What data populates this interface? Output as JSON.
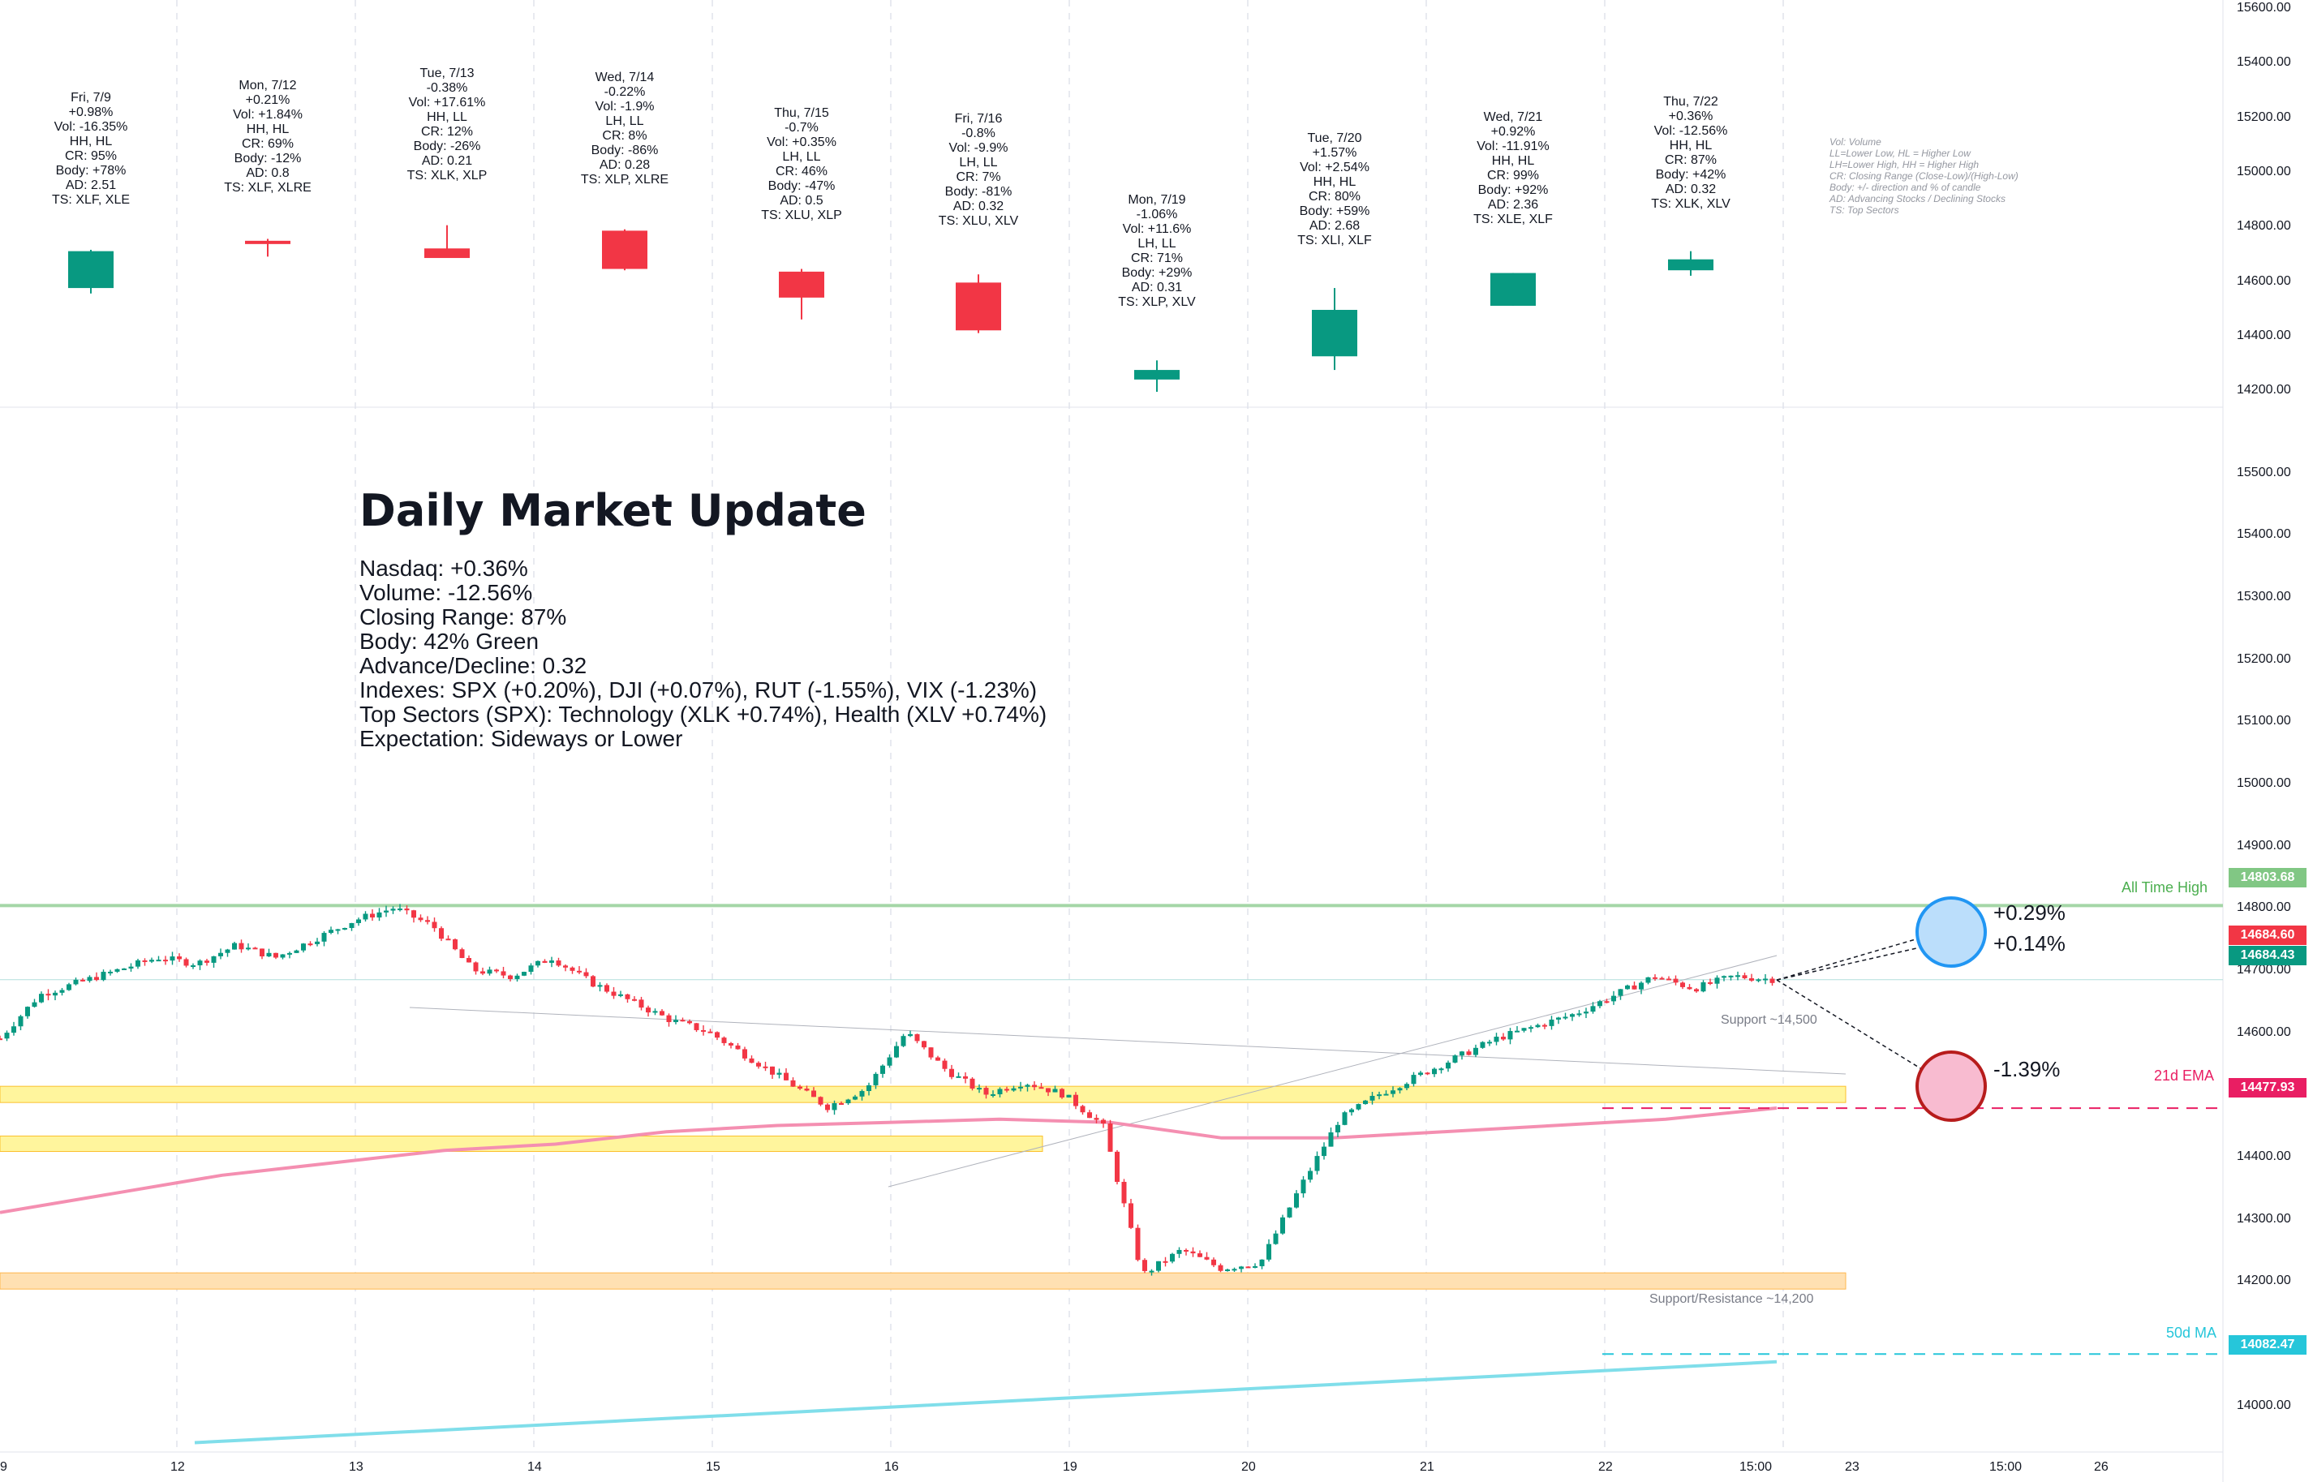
{
  "info_blocks": [
    {
      "lines": [
        "Fri, 7/9",
        "+0.98%",
        "Vol: -16.35%",
        "HH, HL",
        "CR: 95%",
        "Body: +78%",
        "AD: 2.51",
        "TS: XLF, XLE"
      ]
    },
    {
      "lines": [
        "Mon, 7/12",
        "+0.21%",
        "Vol: +1.84%",
        "HH, HL",
        "CR: 69%",
        "Body: -12%",
        "AD: 0.8",
        "TS: XLF, XLRE"
      ]
    },
    {
      "lines": [
        "Tue, 7/13",
        "-0.38%",
        "Vol: +17.61%",
        "HH, LL",
        "CR: 12%",
        "Body: -26%",
        "AD: 0.21",
        "TS: XLK, XLP"
      ]
    },
    {
      "lines": [
        "Wed, 7/14",
        "-0.22%",
        "Vol: -1.9%",
        "LH, LL",
        "CR: 8%",
        "Body: -86%",
        "AD: 0.28",
        "TS: XLP, XLRE"
      ]
    },
    {
      "lines": [
        "Thu, 7/15",
        "-0.7%",
        "Vol: +0.35%",
        "LH, LL",
        "CR: 46%",
        "Body: -47%",
        "AD: 0.5",
        "TS: XLU, XLP"
      ]
    },
    {
      "lines": [
        "Fri, 7/16",
        "-0.8%",
        "Vol: -9.9%",
        "LH, LL",
        "CR: 7%",
        "Body: -81%",
        "AD: 0.32",
        "TS: XLU, XLV"
      ]
    },
    {
      "lines": [
        "Mon, 7/19",
        "-1.06%",
        "Vol: +11.6%",
        "LH, LL",
        "CR: 71%",
        "Body: +29%",
        "AD: 0.31",
        "TS: XLP, XLV"
      ]
    },
    {
      "lines": [
        "Tue, 7/20",
        "+1.57%",
        "Vol: +2.54%",
        "HH, HL",
        "CR: 80%",
        "Body: +59%",
        "AD: 2.68",
        "TS: XLI, XLF"
      ]
    },
    {
      "lines": [
        "Wed, 7/21",
        "+0.92%",
        "Vol: -11.91%",
        "HH, HL",
        "CR: 99%",
        "Body: +92%",
        "AD: 2.36",
        "TS: XLE, XLF"
      ]
    },
    {
      "lines": [
        "Thu, 7/22",
        "+0.36%",
        "Vol: -12.56%",
        "HH, HL",
        "CR: 87%",
        "Body: +42%",
        "AD: 0.32",
        "TS: XLK, XLV"
      ]
    }
  ],
  "legend_lines": [
    "Vol: Volume",
    "LL=Lower Low, HL = Higher Low",
    "LH=Lower High, HH = Higher High",
    "CR: Closing Range (Close-Low)/(High-Low)",
    "Body: +/- direction and % of candle",
    "AD: Advancing Stocks / Declining Stocks",
    "TS: Top Sectors"
  ],
  "update": {
    "title": "Daily Market Update",
    "lines": [
      "Nasdaq: +0.36%",
      "Volume: -12.56%",
      "Closing Range: 87%",
      "Body: 42% Green",
      "Advance/Decline: 0.32",
      "Indexes: SPX (+0.20%), DJI (+0.07%), RUT (-1.55%), VIX (-1.23%)",
      "Top Sectors (SPX): Technology (XLK +0.74%), Health (XLV +0.74%)",
      "Expectation: Sideways or Lower"
    ]
  },
  "annotations": {
    "all_time_high": "All Time High",
    "ema21": "21d EMA",
    "ma50": "50d MA",
    "support_14500": "Support ~14,500",
    "support_resistance_14200": "Support/Resistance ~14,200",
    "up_pct_1": "+0.29%",
    "up_pct_2": "+0.14%",
    "down_pct": "-1.39%"
  },
  "price_tags": {
    "ath": "14803.68",
    "last": "14684.60",
    "prev": "14684.43",
    "ema": "14477.93",
    "ma": "14082.47"
  },
  "colors": {
    "up": "#089981",
    "down": "#f23645",
    "ema": "#f48fb1",
    "ma": "#80deea",
    "ath": "#a5d6a7",
    "support_fill": "#fff59d",
    "support_fill2": "#ffe0b2",
    "up_circle": "#bbdefb",
    "up_circle_stroke": "#2196f3",
    "down_circle": "#f8bbd0",
    "down_circle_stroke": "#b71c1c"
  },
  "chart_data": [
    {
      "type": "candlestick",
      "title": "",
      "series": [
        {
          "name": "",
          "candles": [
            {
              "date": "Fri, 7/9",
              "open": 14575,
              "high": 14715,
              "low": 14555,
              "close": 14710
            },
            {
              "date": "Mon, 7/12",
              "open": 14748,
              "high": 14755,
              "low": 14690,
              "close": 14740
            },
            {
              "date": "Tue, 7/13",
              "open": 14720,
              "high": 14805,
              "low": 14690,
              "close": 14685
            },
            {
              "date": "Wed, 7/14",
              "open": 14785,
              "high": 14790,
              "low": 14640,
              "close": 14645
            },
            {
              "date": "Thu, 7/15",
              "open": 14635,
              "high": 14645,
              "low": 14460,
              "close": 14540
            },
            {
              "date": "Fri, 7/16",
              "open": 14595,
              "high": 14625,
              "low": 14410,
              "close": 14420
            },
            {
              "date": "Mon, 7/19",
              "open": 14240,
              "high": 14310,
              "low": 14195,
              "close": 14275
            },
            {
              "date": "Tue, 7/20",
              "open": 14325,
              "high": 14575,
              "low": 14275,
              "close": 14495
            },
            {
              "date": "Wed, 7/21",
              "open": 14510,
              "high": 14630,
              "low": 14510,
              "close": 14630
            },
            {
              "date": "Thu, 7/22",
              "open": 14640,
              "high": 14710,
              "low": 14620,
              "close": 14680
            }
          ]
        }
      ],
      "ylim": [
        14100,
        15600
      ],
      "yticks": [
        14200,
        14400,
        14600,
        14800,
        15000,
        15200,
        15400,
        15600
      ]
    },
    {
      "type": "line",
      "title": "",
      "x_ticks": [
        "9",
        "12",
        "13",
        "14",
        "15",
        "16",
        "19",
        "20",
        "21",
        "22",
        "15:00",
        "23",
        "15:00",
        "26"
      ],
      "ylim": [
        13925,
        15575
      ],
      "yticks": [
        14000,
        14100,
        14200,
        14300,
        14400,
        14500,
        14600,
        14700,
        14800,
        14900,
        15000,
        15100,
        15200,
        15300,
        15400,
        15500
      ],
      "series": [
        {
          "name": "",
          "values": [
            14590,
            14660,
            14680,
            14700,
            14720,
            14710,
            14740,
            14720,
            14750,
            14780,
            14800,
            14770,
            14700,
            14690,
            14720,
            14680,
            14650,
            14620,
            14600,
            14560,
            14520,
            14480,
            14510,
            14600,
            14540,
            14500,
            14520,
            14500,
            14450,
            14210,
            14250,
            14220,
            14230,
            14350,
            14460,
            14500,
            14530,
            14560,
            14590,
            14610,
            14630,
            14660,
            14690,
            14670,
            14690,
            14685
          ]
        },
        {
          "name": "",
          "values": [
            14310,
            14340,
            14370,
            14390,
            14410,
            14420,
            14440,
            14450,
            14455,
            14460,
            14455,
            14430,
            14430,
            14440,
            14450,
            14460,
            14478
          ]
        },
        {
          "name": "",
          "values": [
            13940,
            13950,
            13960,
            13970,
            13980,
            13990,
            14000,
            14010,
            14020,
            14030,
            14040,
            14050,
            14060,
            14070
          ]
        }
      ],
      "horizontal_levels": [
        14803.68,
        14500,
        14420,
        14200,
        14477.93,
        14082.47
      ],
      "projections": [
        "+0.29%",
        "+0.14%",
        "-1.39%"
      ]
    }
  ]
}
